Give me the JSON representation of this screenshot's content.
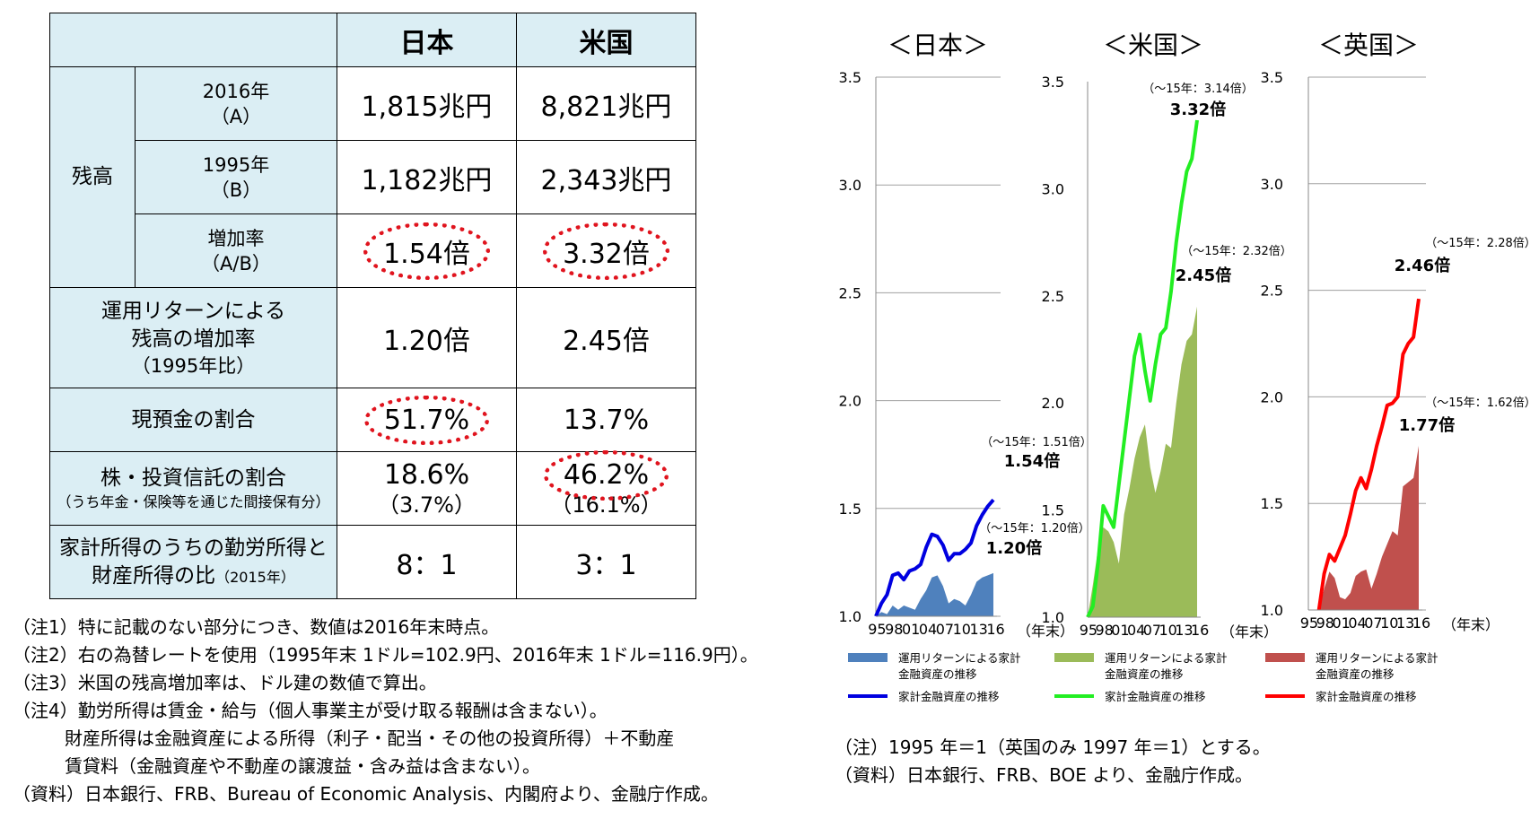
{
  "table": {
    "col_headers": [
      "日本",
      "米国"
    ],
    "balance_label": "残高",
    "rows": {
      "y2016": {
        "label1": "2016年",
        "label2": "（A）",
        "japan": "1,815兆円",
        "us": "8,821兆円"
      },
      "y1995": {
        "label1": "1995年",
        "label2": "（B）",
        "japan": "1,182兆円",
        "us": "2,343兆円"
      },
      "growth": {
        "label1": "増加率",
        "label2": "（A/B）",
        "japan": "1.54倍",
        "us": "3.32倍"
      },
      "return_growth": {
        "label1": "運用リターンによる",
        "label2": "残高の増加率",
        "label3": "（1995年比）",
        "japan": "1.20倍",
        "us": "2.45倍"
      },
      "cash_share": {
        "label1": "現預金の割合",
        "japan": "51.7%",
        "us": "13.7%"
      },
      "equity_share": {
        "label1": "株・投資信託の割合",
        "label2": "（うち年金・保険等を通じた間接保有分）",
        "japan": "18.6%",
        "japan_sub": "（3.7%）",
        "us": "46.2%",
        "us_sub": "（16.1%）"
      },
      "income_ratio": {
        "label1": "家計所得のうちの勤労所得と",
        "label2": "財産所得の比",
        "label2_small": "（2015年）",
        "japan": "8：1",
        "us": "3：1"
      }
    }
  },
  "notes": [
    "（注1）特に記載のない部分につき、数値は2016年末時点。",
    "（注2）右の為替レートを使用（1995年末 1ドル=102.9円、2016年末 1ドル=116.9円）。",
    "（注3）米国の残高増加率は、ドル建の数値で算出。",
    "（注4）勤労所得は賃金・給与（個人事業主が受け取る報酬は含まない）。",
    "財産所得は金融資産による所得（利子・配当・その他の投資所得）＋不動産",
    "賃貸料（金融資産や不動産の譲渡益・含み益は含まない）。",
    "（資料）日本銀行、FRB、Bureau of Economic Analysis、内閣府より、金融庁作成。"
  ],
  "chart_notes": [
    "（注）1995 年＝1（英国のみ 1997 年＝1）とする。",
    "（資料）日本銀行、FRB、BOE より、金融庁作成。"
  ],
  "chart_common": {
    "y_ticks": [
      "1.0",
      "1.5",
      "2.0",
      "2.5",
      "3.0",
      "3.5"
    ],
    "x_ticks": [
      "95",
      "98",
      "01",
      "04",
      "07",
      "10",
      "13",
      "16"
    ],
    "x_unit": "（年末）",
    "legend_area_label_1": "運用リターンによる家計",
    "legend_area_label_2": "金融資産の推移",
    "legend_line_label": "家計金融資産の推移"
  },
  "chart_data": [
    {
      "type": "area",
      "title": "＜日本＞",
      "ylim": [
        1.0,
        3.5
      ],
      "grid": true,
      "x": [
        1995,
        1996,
        1997,
        1998,
        1999,
        2000,
        2001,
        2002,
        2003,
        2004,
        2005,
        2006,
        2007,
        2008,
        2009,
        2010,
        2011,
        2012,
        2013,
        2014,
        2015,
        2016
      ],
      "series": [
        {
          "name": "運用リターンによる家計金融資産の推移",
          "kind": "area",
          "color": "#4f81bd",
          "values": [
            1.0,
            1.02,
            1.01,
            1.05,
            1.03,
            1.05,
            1.04,
            1.03,
            1.08,
            1.12,
            1.18,
            1.19,
            1.14,
            1.06,
            1.08,
            1.07,
            1.05,
            1.1,
            1.16,
            1.18,
            1.19,
            1.2
          ]
        },
        {
          "name": "家計金融資産の推移",
          "kind": "line",
          "color": "#0000e0",
          "values": [
            1.0,
            1.06,
            1.1,
            1.19,
            1.2,
            1.17,
            1.21,
            1.22,
            1.24,
            1.32,
            1.38,
            1.37,
            1.33,
            1.26,
            1.29,
            1.29,
            1.31,
            1.34,
            1.42,
            1.47,
            1.51,
            1.54
          ]
        }
      ],
      "annotations": [
        "（～15年：1.51倍）",
        "1.54倍",
        "（～15年：1.20倍）",
        "1.20倍"
      ]
    },
    {
      "type": "area",
      "title": "＜米国＞",
      "ylim": [
        1.0,
        3.5
      ],
      "grid": false,
      "x": [
        1995,
        1996,
        1997,
        1998,
        1999,
        2000,
        2001,
        2002,
        2003,
        2004,
        2005,
        2006,
        2007,
        2008,
        2009,
        2010,
        2011,
        2012,
        2013,
        2014,
        2015,
        2016
      ],
      "series": [
        {
          "name": "運用リターンによる家計金融資産の推移",
          "kind": "area",
          "color": "#9bbb59",
          "values": [
            1.0,
            1.15,
            1.32,
            1.42,
            1.4,
            1.35,
            1.25,
            1.48,
            1.6,
            1.74,
            1.84,
            1.9,
            1.7,
            1.58,
            1.68,
            1.81,
            1.79,
            2.0,
            2.18,
            2.29,
            2.32,
            2.45
          ]
        },
        {
          "name": "家計金融資産の推移",
          "kind": "line",
          "color": "#22ee22",
          "values": [
            1.0,
            1.05,
            1.25,
            1.52,
            1.47,
            1.42,
            1.62,
            1.82,
            2.02,
            2.22,
            2.32,
            2.15,
            2.01,
            2.18,
            2.32,
            2.35,
            2.52,
            2.75,
            2.93,
            3.08,
            3.14,
            3.32
          ]
        }
      ],
      "annotations": [
        "（～15年：3.14倍）",
        "3.32倍",
        "（～15年：2.32倍）",
        "2.45倍"
      ]
    },
    {
      "type": "area",
      "title": "＜英国＞",
      "ylim": [
        1.0,
        3.5
      ],
      "grid": true,
      "x": [
        1997,
        1998,
        1999,
        2000,
        2001,
        2002,
        2003,
        2004,
        2005,
        2006,
        2007,
        2008,
        2009,
        2010,
        2011,
        2012,
        2013,
        2014,
        2015,
        2016
      ],
      "series": [
        {
          "name": "運用リターンによる家計金融資産の推移",
          "kind": "area",
          "color": "#c0504d",
          "values": [
            1.0,
            1.1,
            1.18,
            1.15,
            1.06,
            1.05,
            1.08,
            1.16,
            1.18,
            1.19,
            1.1,
            1.17,
            1.25,
            1.31,
            1.37,
            1.35,
            1.58,
            1.6,
            1.62,
            1.77
          ]
        },
        {
          "name": "家計金融資産の推移",
          "kind": "line",
          "color": "#ff0000",
          "values": [
            1.0,
            1.17,
            1.26,
            1.23,
            1.29,
            1.35,
            1.45,
            1.56,
            1.62,
            1.57,
            1.66,
            1.77,
            1.86,
            1.96,
            1.97,
            2.0,
            2.2,
            2.25,
            2.28,
            2.46
          ]
        }
      ],
      "annotations": [
        "（～15年：2.28倍）",
        "2.46倍",
        "（～15年：1.62倍）",
        "1.77倍"
      ]
    }
  ]
}
